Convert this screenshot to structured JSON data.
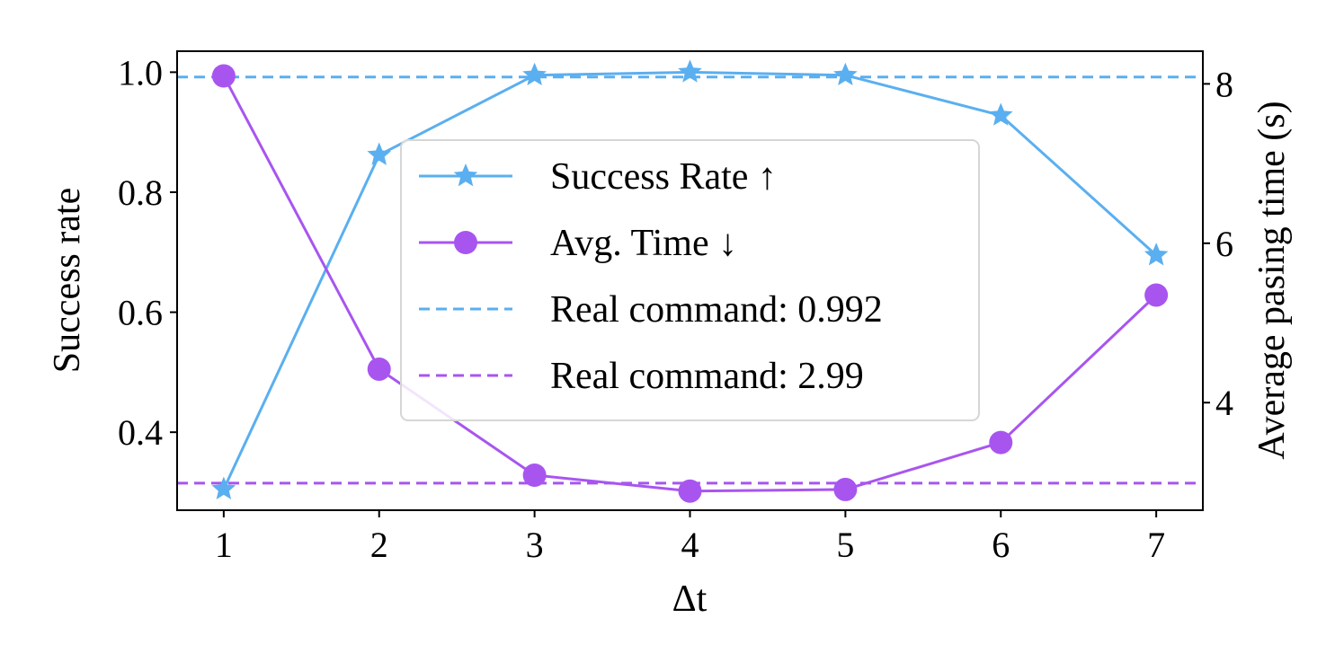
{
  "chart_data": {
    "type": "line",
    "xlabel": "Δt",
    "ylabel_left": "Success rate",
    "ylabel_right": "Average pasing time (s)",
    "x": [
      1,
      2,
      3,
      4,
      5,
      6,
      7
    ],
    "x_ticks": [
      "1",
      "2",
      "3",
      "4",
      "5",
      "6",
      "7"
    ],
    "xlim": [
      0.7,
      7.3
    ],
    "ylim_left": [
      0.27,
      1.035
    ],
    "ylim_right": [
      2.65,
      8.41
    ],
    "y_ticks_left": [
      "0.4",
      "0.6",
      "0.8",
      "1.0"
    ],
    "y_ticks_right": [
      "4",
      "6",
      "8"
    ],
    "grid": false,
    "legend_position": "center",
    "series": [
      {
        "name": "Success Rate ↑",
        "axis": "left",
        "marker": "star",
        "color": "#5aaff0",
        "values": [
          0.305,
          0.862,
          0.995,
          1.0,
          0.995,
          0.928,
          0.695
        ]
      },
      {
        "name": "Avg. Time ↓",
        "axis": "right",
        "marker": "circle",
        "color": "#a855f0",
        "values": [
          8.1,
          4.42,
          3.09,
          2.89,
          2.91,
          3.5,
          5.35
        ]
      }
    ],
    "reference_lines": [
      {
        "name": "Real command: 0.992",
        "axis": "left",
        "value": 0.992,
        "color": "#5aaff0",
        "style": "dashed"
      },
      {
        "name": "Real command: 2.99",
        "axis": "right",
        "value": 2.99,
        "color": "#a855f0",
        "style": "dashed"
      }
    ]
  }
}
